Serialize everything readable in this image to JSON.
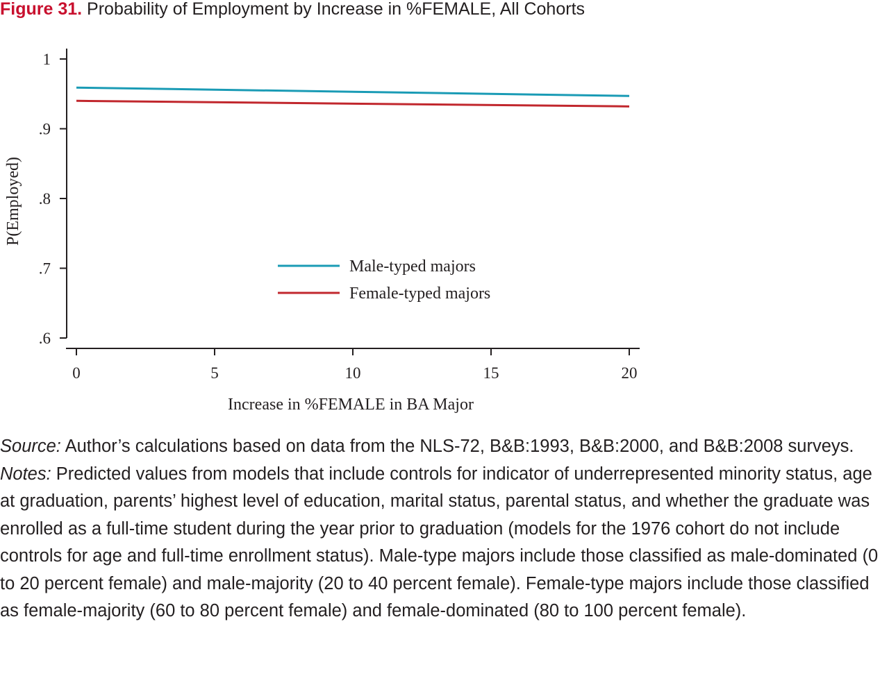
{
  "figure": {
    "label": "Figure 31.",
    "title": "Probability of Employment by Increase in %FEMALE, All Cohorts"
  },
  "chart_data": {
    "type": "line",
    "xlabel": "Increase in %FEMALE in BA Major",
    "ylabel": "P(Employed)",
    "xlim": [
      0,
      20
    ],
    "ylim": [
      0.6,
      1.0
    ],
    "x_ticks": [
      0,
      5,
      10,
      15,
      20
    ],
    "x_tick_labels": [
      "0",
      "5",
      "10",
      "15",
      "20"
    ],
    "y_ticks": [
      0.6,
      0.7,
      0.8,
      0.9,
      1.0
    ],
    "y_tick_labels": [
      ".6",
      ".7",
      ".8",
      ".9",
      "1"
    ],
    "grid": false,
    "legend_position": "center",
    "series": [
      {
        "name": "Male-typed majors",
        "color": "#1a9bb5",
        "x": [
          0,
          20
        ],
        "y": [
          0.959,
          0.947
        ]
      },
      {
        "name": "Female-typed majors",
        "color": "#c1272d",
        "x": [
          0,
          20
        ],
        "y": [
          0.94,
          0.932
        ]
      }
    ]
  },
  "notes": {
    "source_label": "Source:",
    "source_text": "Author’s calculations based on data from the NLS-72, B&B:1993, B&B:2000, and B&B:2008 surveys.",
    "notes_label": "Notes:",
    "notes_text": "Predicted values from models that include controls for indicator of underrepresented minority status, age at graduation, parents’ highest level of education, marital status, parental status, and whether the graduate was enrolled as a full-time student during the year prior to graduation (models for the 1976 cohort do not include controls for age and full-time enrollment status). Male-type majors include those classified as male-dominated (0 to 20 percent female) and male-majority (20 to 40 percent female). Female-type majors include those classified as female-majority (60 to 80 percent female) and female-dominated (80 to 100 percent female)."
  }
}
